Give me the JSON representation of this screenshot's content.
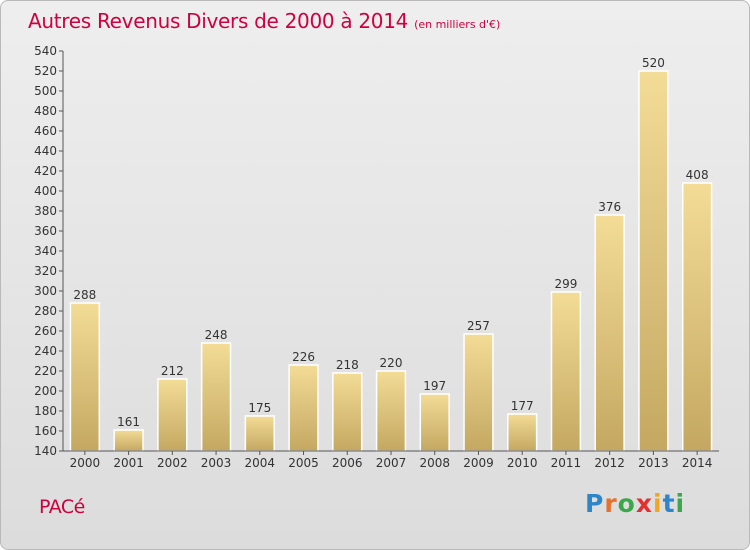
{
  "header": {
    "title": "Autres Revenus Divers de 2000 à 2014",
    "unit": "(en milliers d'€)"
  },
  "footer": {
    "commune": "PACé",
    "brand": [
      "P",
      "r",
      "o",
      "x",
      "i",
      "t",
      "i"
    ],
    "brand_colors": [
      "#2e86c8",
      "#e8702a",
      "#3aa84a",
      "#e2312f",
      "#f0a71c",
      "#2e86c8",
      "#3aa84a"
    ]
  },
  "chart_data": {
    "type": "bar",
    "categories": [
      "2000",
      "2001",
      "2002",
      "2003",
      "2004",
      "2005",
      "2006",
      "2007",
      "2008",
      "2009",
      "2010",
      "2011",
      "2012",
      "2013",
      "2014"
    ],
    "values": [
      288,
      161,
      212,
      248,
      175,
      226,
      218,
      220,
      197,
      257,
      177,
      299,
      376,
      520,
      408
    ],
    "title": "Autres Revenus Divers de 2000 à 2014",
    "subtitle": "(en milliers d'€)",
    "xlabel": "",
    "ylabel": "",
    "ylim": [
      140,
      540
    ],
    "ytick_step": 20,
    "grid": false,
    "bar_color": "#e8cf8a"
  }
}
